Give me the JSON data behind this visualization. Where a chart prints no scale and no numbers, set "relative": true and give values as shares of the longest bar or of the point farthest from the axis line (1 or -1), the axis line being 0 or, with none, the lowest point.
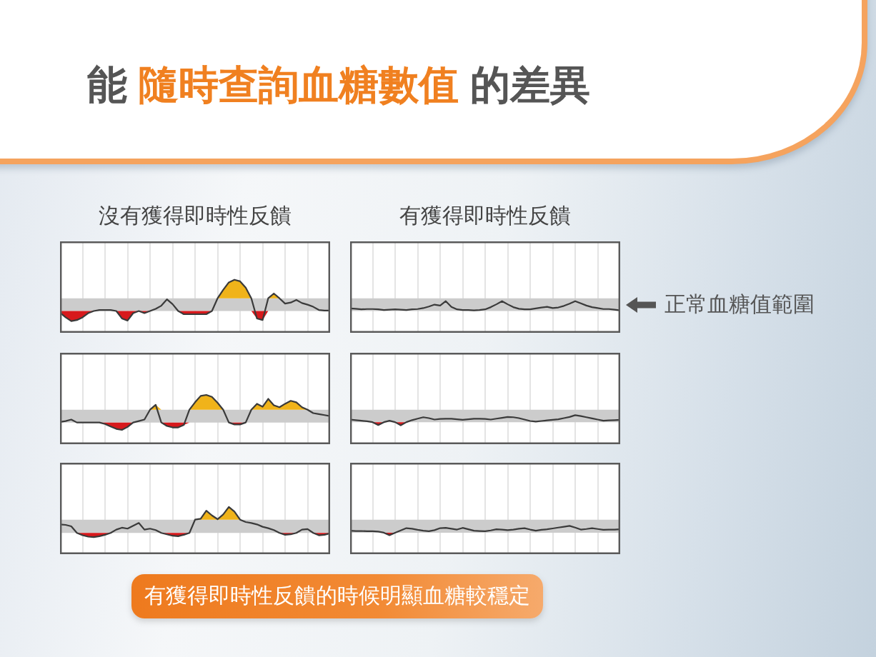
{
  "chart_data": [
    {
      "type": "line",
      "title": "沒有獲得即時性反饋",
      "annotations": [
        "能",
        "隨時查詢血糖數值",
        "的差異"
      ],
      "relative": true,
      "tick_labels": false,
      "grid": "x",
      "bands": [
        {
          "axis": "y",
          "from": 0.41,
          "to": 0.65,
          "color": "#cccccc"
        }
      ],
      "categories": [
        null,
        null,
        null,
        null,
        null,
        null,
        null,
        null,
        null,
        null,
        null,
        null,
        null,
        null,
        null,
        null,
        null,
        null,
        null,
        null,
        null,
        null,
        null,
        null,
        null,
        null,
        null,
        null,
        null,
        null,
        null,
        null,
        null,
        null,
        null,
        null,
        null,
        null,
        null,
        null,
        null,
        null,
        null,
        null,
        null,
        null,
        null,
        null,
        null
      ],
      "series": [
        {
          "type": "line",
          "color": "#3a3a3a",
          "values": [
            0.38,
            0.29,
            0.22,
            0.24,
            0.29,
            0.37,
            0.41,
            0.43,
            0.43,
            0.43,
            0.41,
            0.27,
            0.23,
            0.37,
            0.41,
            0.37,
            0.41,
            0.45,
            0.51,
            0.63,
            0.54,
            0.41,
            0.35,
            0.35,
            0.35,
            0.35,
            0.35,
            0.41,
            0.65,
            0.81,
            0.95,
            1,
            0.97,
            0.85,
            0.65,
            0.27,
            0.24,
            0.65,
            0.74,
            0.65,
            0.55,
            0.57,
            0.62,
            0.56,
            0.53,
            0.49,
            0.43,
            0.42,
            0.42
          ]
        },
        {
          "type": "area",
          "color": "#d7191c",
          "values": [
            0.38,
            0.29,
            0.22,
            0.24,
            0.29,
            0.37,
            0.41,
            0.41,
            0.41,
            0.41,
            0.41,
            0.27,
            0.23,
            0.37,
            0.41,
            0.37,
            0.41,
            0.41,
            0.41,
            0.41,
            0.41,
            0.41,
            0.35,
            0.35,
            0.35,
            0.35,
            0.35,
            0.41,
            0.41,
            0.41,
            0.41,
            0.41,
            0.41,
            0.41,
            0.41,
            0.27,
            0.24,
            0.41,
            0.41,
            0.41,
            0.41,
            0.41,
            0.41,
            0.41,
            0.41,
            0.41,
            0.41,
            0.41,
            0.41
          ]
        },
        {
          "type": "area",
          "color": "#f0b31a",
          "values": [
            0.65,
            0.65,
            0.65,
            0.65,
            0.65,
            0.65,
            0.65,
            0.65,
            0.65,
            0.65,
            0.65,
            0.65,
            0.65,
            0.65,
            0.65,
            0.65,
            0.65,
            0.65,
            0.65,
            0.65,
            0.65,
            0.65,
            0.65,
            0.65,
            0.65,
            0.65,
            0.65,
            0.65,
            0.65,
            0.81,
            0.95,
            1,
            0.97,
            0.85,
            0.65,
            0.65,
            0.65,
            0.65,
            0.74,
            0.65,
            0.65,
            0.65,
            0.65,
            0.65,
            0.65,
            0.65,
            0.65,
            0.65,
            0.65
          ]
        }
      ]
    },
    {
      "type": "line",
      "title": "有獲得即時性反饋",
      "relative": true,
      "tick_labels": false,
      "grid": "x",
      "bands": [
        {
          "axis": "y",
          "from": 0.69,
          "to": 1.09,
          "color": "#cccccc",
          "label": "正常血糖值範圍"
        }
      ],
      "categories": [
        null,
        null,
        null,
        null,
        null,
        null,
        null,
        null,
        null,
        null,
        null,
        null,
        null,
        null,
        null,
        null,
        null,
        null,
        null,
        null,
        null,
        null,
        null,
        null,
        null,
        null,
        null,
        null,
        null,
        null,
        null,
        null,
        null,
        null,
        null,
        null,
        null,
        null,
        null,
        null,
        null,
        null,
        null,
        null,
        null,
        null,
        null,
        null,
        null
      ],
      "series": [
        {
          "type": "line",
          "color": "#3a3a3a",
          "values": [
            0.77,
            0.76,
            0.74,
            0.75,
            0.75,
            0.74,
            0.72,
            0.73,
            0.74,
            0.73,
            0.72,
            0.74,
            0.75,
            0.78,
            0.83,
            0.89,
            0.86,
            1,
            0.82,
            0.74,
            0.72,
            0.72,
            0.71,
            0.72,
            0.74,
            0.81,
            0.9,
            1,
            0.9,
            0.81,
            0.76,
            0.74,
            0.74,
            0.77,
            0.8,
            0.82,
            0.78,
            0.8,
            0.85,
            0.92,
            1,
            0.93,
            0.86,
            0.81,
            0.78,
            0.75,
            0.75,
            0.73,
            0.71
          ]
        }
      ]
    },
    {
      "type": "line",
      "relative": true,
      "tick_labels": false,
      "grid": "x",
      "bands": [
        {
          "axis": "y",
          "from": 0.44,
          "to": 0.7,
          "color": "#cccccc"
        }
      ],
      "categories": [
        null,
        null,
        null,
        null,
        null,
        null,
        null,
        null,
        null,
        null,
        null,
        null,
        null,
        null,
        null,
        null,
        null,
        null,
        null,
        null,
        null,
        null,
        null,
        null,
        null,
        null,
        null,
        null,
        null,
        null,
        null,
        null,
        null,
        null,
        null,
        null,
        null,
        null,
        null,
        null,
        null,
        null,
        null,
        null,
        null,
        null,
        null,
        null,
        null
      ],
      "series": [
        {
          "type": "line",
          "color": "#3a3a3a",
          "values": [
            0.45,
            0.47,
            0.5,
            0.44,
            0.44,
            0.44,
            0.44,
            0.44,
            0.41,
            0.36,
            0.31,
            0.29,
            0.35,
            0.44,
            0.47,
            0.5,
            0.7,
            0.8,
            0.44,
            0.37,
            0.34,
            0.34,
            0.39,
            0.7,
            0.85,
            0.98,
            1,
            0.96,
            0.84,
            0.7,
            0.44,
            0.4,
            0.4,
            0.44,
            0.7,
            0.82,
            0.76,
            0.92,
            0.79,
            0.75,
            0.82,
            0.88,
            0.85,
            0.75,
            0.7,
            0.63,
            0.61,
            0.59,
            0.57
          ]
        },
        {
          "type": "area",
          "color": "#d7191c",
          "values": [
            0.44,
            0.44,
            0.44,
            0.44,
            0.44,
            0.44,
            0.44,
            0.44,
            0.41,
            0.36,
            0.31,
            0.29,
            0.35,
            0.44,
            0.44,
            0.44,
            0.44,
            0.44,
            0.44,
            0.37,
            0.34,
            0.34,
            0.39,
            0.44,
            0.44,
            0.44,
            0.44,
            0.44,
            0.44,
            0.44,
            0.44,
            0.4,
            0.4,
            0.44,
            0.44,
            0.44,
            0.44,
            0.44,
            0.44,
            0.44,
            0.44,
            0.44,
            0.44,
            0.44,
            0.44,
            0.44,
            0.44,
            0.44,
            0.44
          ]
        },
        {
          "type": "area",
          "color": "#f0b31a",
          "values": [
            0.7,
            0.7,
            0.7,
            0.7,
            0.7,
            0.7,
            0.7,
            0.7,
            0.7,
            0.7,
            0.7,
            0.7,
            0.7,
            0.7,
            0.7,
            0.7,
            0.7,
            0.8,
            0.7,
            0.7,
            0.7,
            0.7,
            0.7,
            0.7,
            0.85,
            0.98,
            1,
            0.96,
            0.84,
            0.7,
            0.7,
            0.7,
            0.7,
            0.7,
            0.7,
            0.82,
            0.76,
            0.92,
            0.79,
            0.75,
            0.82,
            0.88,
            0.85,
            0.75,
            0.7,
            0.7,
            0.7,
            0.7,
            0.7
          ]
        }
      ]
    },
    {
      "type": "line",
      "relative": true,
      "tick_labels": false,
      "grid": "x",
      "bands": [
        {
          "axis": "y",
          "from": 0.76,
          "to": 1.19,
          "color": "#cccccc"
        }
      ],
      "categories": [
        null,
        null,
        null,
        null,
        null,
        null,
        null,
        null,
        null,
        null,
        null,
        null,
        null,
        null,
        null,
        null,
        null,
        null,
        null,
        null,
        null,
        null,
        null,
        null,
        null,
        null,
        null,
        null,
        null,
        null,
        null,
        null,
        null,
        null,
        null,
        null,
        null,
        null,
        null,
        null,
        null,
        null,
        null,
        null,
        null,
        null,
        null,
        null,
        null
      ],
      "series": [
        {
          "type": "line",
          "color": "#3a3a3a",
          "values": [
            0.85,
            0.83,
            0.81,
            0.79,
            0.76,
            0.66,
            0.76,
            0.81,
            0.76,
            0.65,
            0.76,
            0.83,
            0.88,
            0.93,
            0.9,
            0.85,
            0.87,
            0.88,
            0.88,
            0.86,
            0.84,
            0.86,
            0.88,
            0.88,
            0.87,
            0.85,
            0.88,
            0.91,
            0.94,
            0.93,
            0.9,
            0.85,
            0.8,
            0.78,
            0.8,
            0.82,
            0.84,
            0.86,
            0.9,
            0.94,
            1,
            0.97,
            0.93,
            0.89,
            0.85,
            0.81,
            0.82,
            0.83,
            0.84
          ]
        },
        {
          "type": "area",
          "color": "#d7191c",
          "values": [
            0.76,
            0.76,
            0.76,
            0.76,
            0.76,
            0.66,
            0.76,
            0.76,
            0.76,
            0.65,
            0.76,
            0.76,
            0.76,
            0.76,
            0.76,
            0.76,
            0.76,
            0.76,
            0.76,
            0.76,
            0.76,
            0.76,
            0.76,
            0.76,
            0.76,
            0.76,
            0.76,
            0.76,
            0.76,
            0.76,
            0.76,
            0.76,
            0.76,
            0.76,
            0.76,
            0.76,
            0.76,
            0.76,
            0.76,
            0.76,
            0.76,
            0.76,
            0.76,
            0.76,
            0.76,
            0.76,
            0.76,
            0.76,
            0.76
          ]
        }
      ]
    },
    {
      "type": "line",
      "annotations": [
        "有獲得即時性反饋的時候明顯血糖較穩定"
      ],
      "relative": true,
      "tick_labels": false,
      "grid": "x",
      "bands": [
        {
          "axis": "y",
          "from": 0.45,
          "to": 0.73,
          "color": "#cccccc"
        }
      ],
      "categories": [
        null,
        null,
        null,
        null,
        null,
        null,
        null,
        null,
        null,
        null,
        null,
        null,
        null,
        null,
        null,
        null,
        null,
        null,
        null,
        null,
        null,
        null,
        null,
        null,
        null,
        null,
        null,
        null,
        null,
        null,
        null,
        null,
        null,
        null,
        null,
        null,
        null,
        null,
        null,
        null,
        null,
        null,
        null,
        null,
        null,
        null,
        null,
        null,
        null
      ],
      "series": [
        {
          "type": "line",
          "color": "#3a3a3a",
          "values": [
            0.63,
            0.62,
            0.59,
            0.45,
            0.4,
            0.37,
            0.36,
            0.38,
            0.41,
            0.45,
            0.52,
            0.56,
            0.54,
            0.6,
            0.66,
            0.52,
            0.54,
            0.51,
            0.45,
            0.42,
            0.39,
            0.38,
            0.41,
            0.45,
            0.73,
            0.75,
            0.92,
            0.82,
            0.74,
            0.84,
            1,
            0.9,
            0.73,
            0.68,
            0.66,
            0.63,
            0.58,
            0.55,
            0.51,
            0.45,
            0.41,
            0.42,
            0.45,
            0.52,
            0.53,
            0.45,
            0.4,
            0.41,
            0.44
          ]
        },
        {
          "type": "area",
          "color": "#d7191c",
          "values": [
            0.45,
            0.45,
            0.45,
            0.45,
            0.4,
            0.37,
            0.36,
            0.38,
            0.41,
            0.45,
            0.45,
            0.45,
            0.45,
            0.45,
            0.45,
            0.45,
            0.45,
            0.45,
            0.45,
            0.42,
            0.39,
            0.38,
            0.41,
            0.45,
            0.45,
            0.45,
            0.45,
            0.45,
            0.45,
            0.45,
            0.45,
            0.45,
            0.45,
            0.45,
            0.45,
            0.45,
            0.45,
            0.45,
            0.45,
            0.45,
            0.41,
            0.42,
            0.45,
            0.45,
            0.45,
            0.45,
            0.4,
            0.41,
            0.44
          ]
        },
        {
          "type": "area",
          "color": "#f0b31a",
          "values": [
            0.73,
            0.73,
            0.73,
            0.73,
            0.73,
            0.73,
            0.73,
            0.73,
            0.73,
            0.73,
            0.73,
            0.73,
            0.73,
            0.73,
            0.73,
            0.73,
            0.73,
            0.73,
            0.73,
            0.73,
            0.73,
            0.73,
            0.73,
            0.73,
            0.73,
            0.75,
            0.92,
            0.82,
            0.74,
            0.84,
            1,
            0.9,
            0.73,
            0.73,
            0.73,
            0.73,
            0.73,
            0.73,
            0.73,
            0.73,
            0.73,
            0.73,
            0.73,
            0.73,
            0.73,
            0.73,
            0.73,
            0.73,
            0.73
          ]
        }
      ]
    },
    {
      "type": "line",
      "relative": true,
      "tick_labels": false,
      "grid": "x",
      "bands": [
        {
          "axis": "y",
          "from": 0.76,
          "to": 1.22,
          "color": "#cccccc"
        }
      ],
      "categories": [
        null,
        null,
        null,
        null,
        null,
        null,
        null,
        null,
        null,
        null,
        null,
        null,
        null,
        null,
        null,
        null,
        null,
        null,
        null,
        null,
        null,
        null,
        null,
        null,
        null,
        null,
        null,
        null,
        null,
        null,
        null,
        null,
        null,
        null,
        null,
        null,
        null,
        null,
        null,
        null,
        null,
        null,
        null,
        null,
        null,
        null,
        null,
        null,
        null
      ],
      "series": [
        {
          "type": "line",
          "color": "#3a3a3a",
          "values": [
            0.83,
            0.82,
            0.82,
            0.81,
            0.81,
            0.8,
            0.76,
            0.67,
            0.76,
            0.84,
            0.92,
            0.9,
            0.86,
            0.83,
            0.81,
            0.85,
            0.92,
            0.93,
            0.9,
            0.87,
            0.93,
            0.88,
            0.83,
            0.82,
            0.81,
            0.84,
            0.88,
            0.87,
            0.85,
            0.87,
            0.9,
            0.92,
            0.87,
            0.83,
            0.86,
            0.88,
            0.91,
            0.94,
            0.97,
            1,
            0.94,
            0.87,
            0.89,
            0.92,
            0.89,
            0.86,
            0.87,
            0.87,
            0.88
          ]
        },
        {
          "type": "area",
          "color": "#d7191c",
          "values": [
            0.76,
            0.76,
            0.76,
            0.76,
            0.76,
            0.76,
            0.76,
            0.67,
            0.76,
            0.76,
            0.76,
            0.76,
            0.76,
            0.76,
            0.76,
            0.76,
            0.76,
            0.76,
            0.76,
            0.76,
            0.76,
            0.76,
            0.76,
            0.76,
            0.76,
            0.76,
            0.76,
            0.76,
            0.76,
            0.76,
            0.76,
            0.76,
            0.76,
            0.76,
            0.76,
            0.76,
            0.76,
            0.76,
            0.76,
            0.76,
            0.76,
            0.76,
            0.76,
            0.76,
            0.76,
            0.76,
            0.76,
            0.76,
            0.76
          ]
        }
      ]
    }
  ]
}
